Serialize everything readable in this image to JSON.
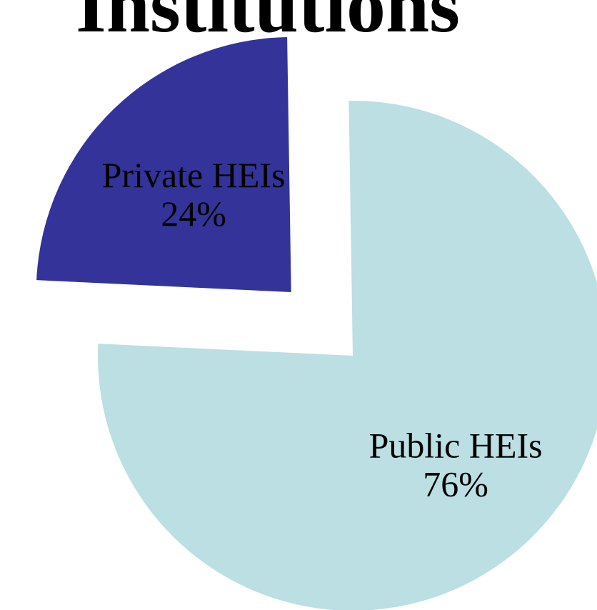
{
  "chart_data": {
    "type": "pie",
    "title": "Institutions",
    "categories": [
      "Private HEIs",
      "Public HEIs"
    ],
    "values": [
      24,
      76
    ],
    "slices": [
      {
        "label": "Private HEIs",
        "percent_label": "24%",
        "value": 24,
        "color": "#333399",
        "exploded": true
      },
      {
        "label": "Public HEIs",
        "percent_label": "76%",
        "value": 76,
        "color": "#bbdfe3",
        "exploded": false
      }
    ]
  }
}
